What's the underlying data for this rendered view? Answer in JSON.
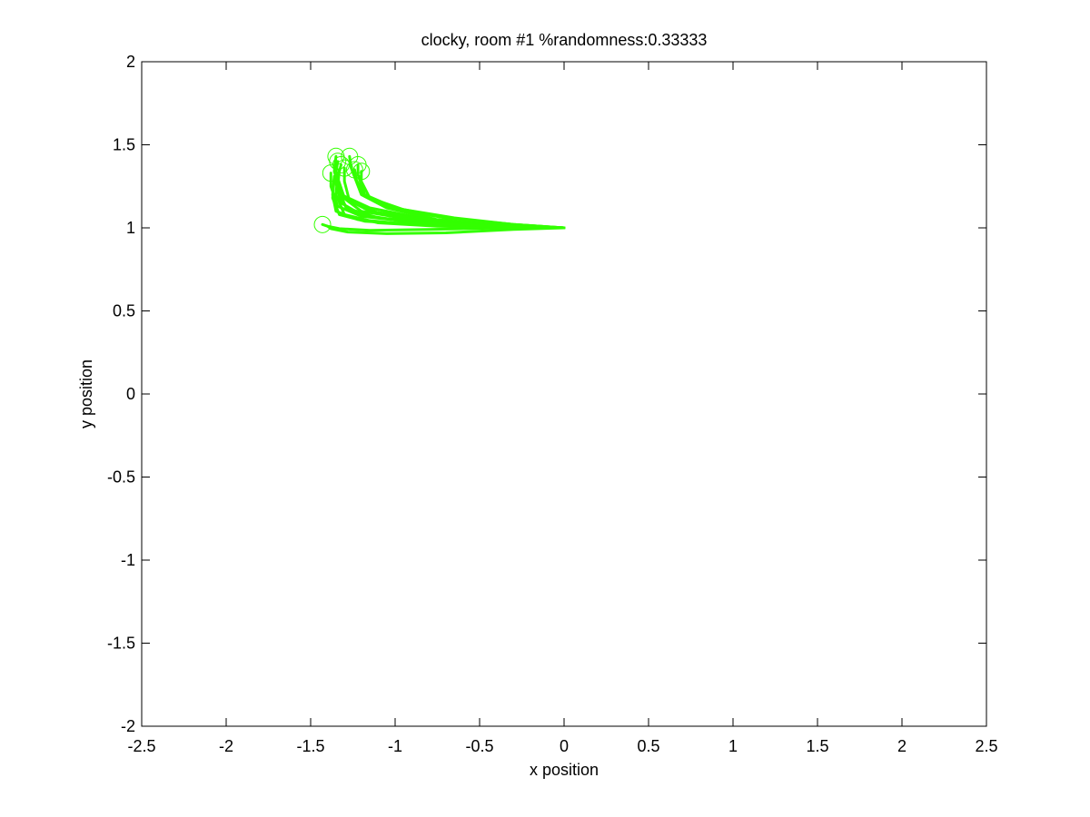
{
  "chart_data": {
    "type": "line",
    "title": "clocky, room #1 %randomness:0.33333",
    "xlabel": "x position",
    "ylabel": "y position",
    "xlim": [
      -2.5,
      2.5
    ],
    "ylim": [
      -2,
      2
    ],
    "xticks": [
      -2.5,
      -2,
      -1.5,
      -1,
      -0.5,
      0,
      0.5,
      1,
      1.5,
      2,
      2.5
    ],
    "xtick_labels": [
      "-2.5",
      "-2",
      "-1.5",
      "-1",
      "-0.5",
      "0",
      "0.5",
      "1",
      "1.5",
      "2",
      "2.5"
    ],
    "yticks": [
      -2,
      -1.5,
      -1,
      -0.5,
      0,
      0.5,
      1,
      1.5,
      2
    ],
    "ytick_labels": [
      "-2",
      "-1.5",
      "-1",
      "-0.5",
      "0",
      "0.5",
      "1",
      "1.5",
      "2"
    ],
    "grid": false,
    "color": "#33ff00",
    "start_point": [
      0,
      1
    ],
    "end_markers": [
      [
        -1.35,
        1.43
      ],
      [
        -1.27,
        1.43
      ],
      [
        -1.22,
        1.38
      ],
      [
        -1.2,
        1.34
      ],
      [
        -1.32,
        1.38
      ],
      [
        -1.38,
        1.33
      ],
      [
        -1.3,
        1.36
      ],
      [
        -1.24,
        1.35
      ],
      [
        -1.34,
        1.4
      ],
      [
        -1.43,
        1.02
      ]
    ],
    "series": [
      {
        "x": [
          0,
          -0.35,
          -0.8,
          -1.15,
          -1.32,
          -1.36,
          -1.35
        ],
        "y": [
          1.0,
          1.01,
          1.05,
          1.12,
          1.2,
          1.34,
          1.43
        ]
      },
      {
        "x": [
          0,
          -0.35,
          -0.75,
          -1.05,
          -1.2,
          -1.26,
          -1.27
        ],
        "y": [
          1.0,
          1.01,
          1.05,
          1.12,
          1.2,
          1.36,
          1.43
        ]
      },
      {
        "x": [
          0,
          -0.3,
          -0.7,
          -1.0,
          -1.18,
          -1.22,
          -1.22
        ],
        "y": [
          1.0,
          1.02,
          1.06,
          1.12,
          1.2,
          1.32,
          1.38
        ]
      },
      {
        "x": [
          0,
          -0.3,
          -0.65,
          -0.95,
          -1.15,
          -1.2,
          -1.2
        ],
        "y": [
          1.0,
          1.02,
          1.06,
          1.11,
          1.18,
          1.28,
          1.34
        ]
      },
      {
        "x": [
          0,
          -0.35,
          -0.8,
          -1.15,
          -1.3,
          -1.34,
          -1.32
        ],
        "y": [
          1.0,
          1.01,
          1.05,
          1.1,
          1.18,
          1.3,
          1.38
        ]
      },
      {
        "x": [
          0,
          -0.4,
          -0.85,
          -1.2,
          -1.34,
          -1.38,
          -1.38
        ],
        "y": [
          1.0,
          1.01,
          1.03,
          1.07,
          1.13,
          1.25,
          1.33
        ]
      },
      {
        "x": [
          0,
          -0.35,
          -0.8,
          -1.1,
          -1.27,
          -1.3,
          -1.3
        ],
        "y": [
          1.0,
          1.01,
          1.04,
          1.09,
          1.16,
          1.28,
          1.36
        ]
      },
      {
        "x": [
          0,
          -0.3,
          -0.7,
          -1.0,
          -1.18,
          -1.23,
          -1.24
        ],
        "y": [
          1.0,
          1.02,
          1.06,
          1.11,
          1.19,
          1.29,
          1.35
        ]
      },
      {
        "x": [
          0,
          -0.38,
          -0.85,
          -1.2,
          -1.33,
          -1.35,
          -1.34
        ],
        "y": [
          1.0,
          1.01,
          1.04,
          1.1,
          1.2,
          1.33,
          1.4
        ]
      },
      {
        "x": [
          0,
          -0.3,
          -0.7,
          -1.05,
          -1.28,
          -1.38,
          -1.4
        ],
        "y": [
          1.0,
          0.99,
          0.97,
          0.965,
          0.975,
          0.995,
          1.01
        ]
      },
      {
        "x": [
          0,
          -0.35,
          -0.8,
          -1.15,
          -1.33,
          -1.4,
          -1.43
        ],
        "y": [
          1.0,
          1.0,
          0.99,
          0.985,
          0.995,
          1.01,
          1.02
        ]
      },
      {
        "x": [
          0,
          -0.4,
          -0.85,
          -1.18,
          -1.33,
          -1.37,
          -1.36
        ],
        "y": [
          1.0,
          1.01,
          1.02,
          1.04,
          1.08,
          1.18,
          1.3
        ]
      },
      {
        "x": [
          0,
          -0.35,
          -0.75,
          -1.1,
          -1.29,
          -1.34,
          -1.33
        ],
        "y": [
          1.0,
          1.01,
          1.03,
          1.06,
          1.12,
          1.24,
          1.35
        ]
      },
      {
        "x": [
          0,
          -0.4,
          -0.9,
          -1.22,
          -1.35,
          -1.37,
          -1.36
        ],
        "y": [
          1.0,
          1.0,
          1.02,
          1.05,
          1.1,
          1.2,
          1.31
        ]
      },
      {
        "x": [
          0,
          -0.3,
          -0.75,
          -1.1,
          -1.3,
          -1.35,
          -1.34
        ],
        "y": [
          1.0,
          1.0,
          1.01,
          1.03,
          1.08,
          1.2,
          1.32
        ]
      },
      {
        "x": [
          0,
          -0.42,
          -0.9,
          -1.2,
          -1.32,
          -1.35,
          -1.35
        ],
        "y": [
          1.0,
          1.01,
          1.03,
          1.08,
          1.15,
          1.27,
          1.37
        ]
      }
    ]
  }
}
